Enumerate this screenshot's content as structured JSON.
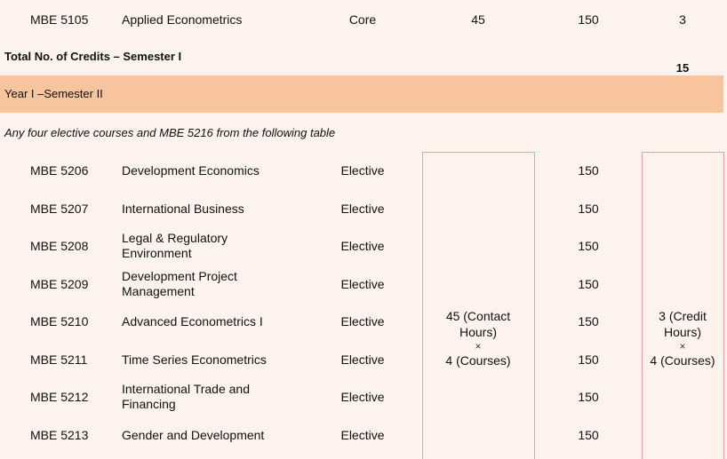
{
  "row_top": {
    "code": "MBE 5105",
    "name": "Applied Econometrics",
    "type": "Core",
    "contact": "45",
    "hours": "150",
    "credit": "3"
  },
  "total": {
    "label": "Total No. of Credits – Semester I",
    "value": "15"
  },
  "semester_header": "Year I –Semester II",
  "note": "Any four elective courses and MBE 5216 from the following table",
  "elective_rows": [
    {
      "code": "MBE 5206",
      "name": "Development Economics",
      "type": "Elective",
      "hours": "150"
    },
    {
      "code": "MBE 5207",
      "name": "International Business",
      "type": "Elective",
      "hours": "150"
    },
    {
      "code": "MBE 5208",
      "name": "Legal & Regulatory Environment",
      "type": "Elective",
      "hours": "150"
    },
    {
      "code": "MBE 5209",
      "name": "Development Project Management",
      "type": "Elective",
      "hours": "150"
    },
    {
      "code": "MBE 5210",
      "name": "Advanced Econometrics I",
      "type": "Elective",
      "hours": "150"
    },
    {
      "code": "MBE 5211",
      "name": "Time Series Econometrics",
      "type": "Elective",
      "hours": "150"
    },
    {
      "code": "MBE 5212",
      "name": "International Trade and Financing",
      "type": "Elective",
      "hours": "150"
    },
    {
      "code": "MBE 5213",
      "name": "Gender and Development",
      "type": "Elective",
      "hours": "150"
    }
  ],
  "merged_contact": {
    "line1": "45 (Contact",
    "line2": "Hours)",
    "times": "×",
    "line3": "4 (Courses)"
  },
  "merged_credit": {
    "line1": "3 (Credit",
    "line2": "Hours)",
    "times": "×",
    "line3": "4 (Courses)"
  },
  "colors": {
    "page_bg": "#fdf2ec",
    "header_band": "#f8c49e",
    "box_border": "#e9a2a2"
  }
}
